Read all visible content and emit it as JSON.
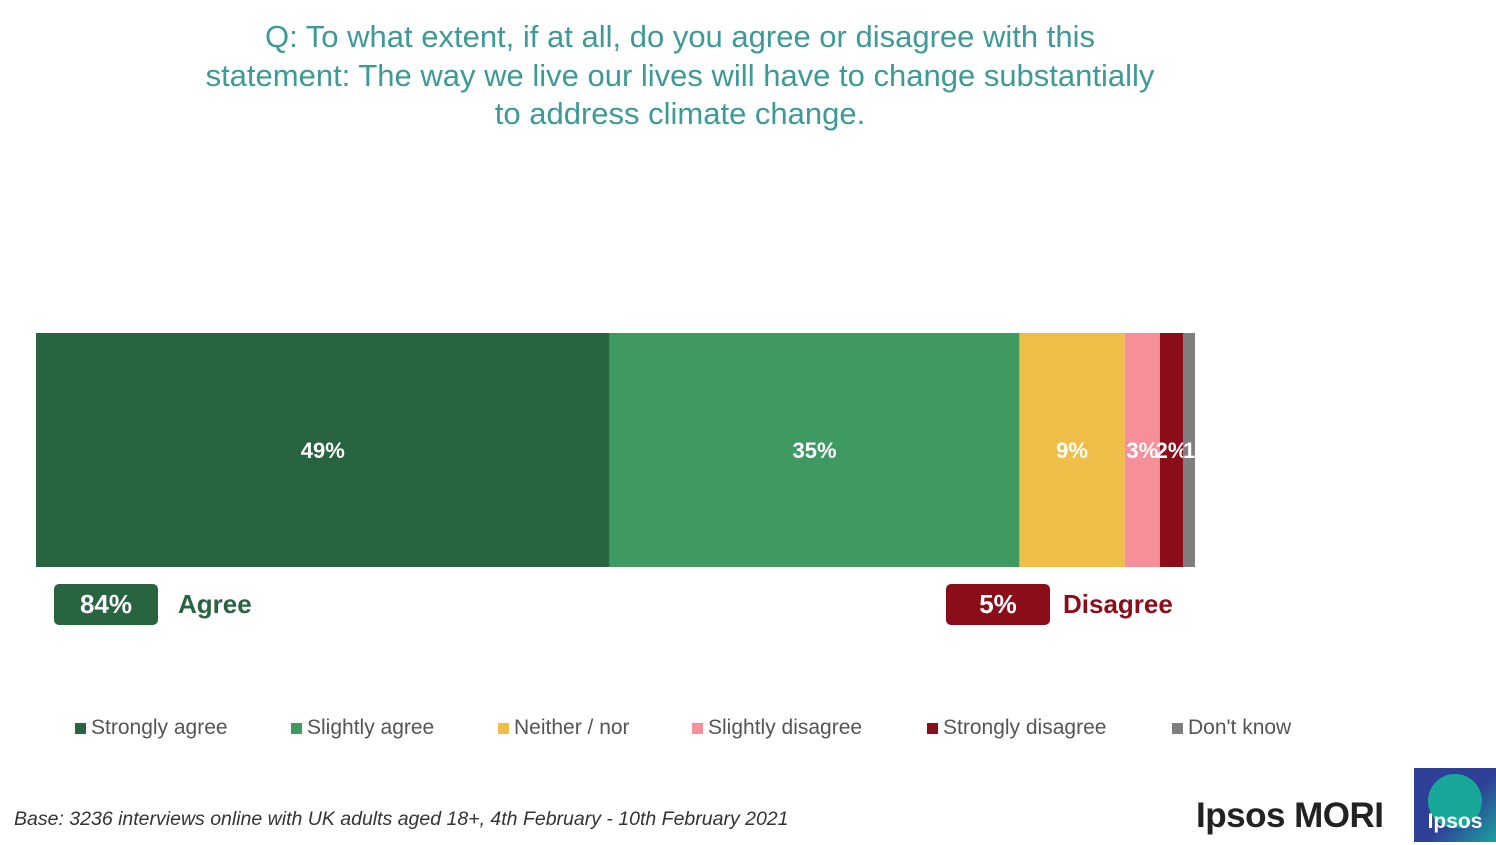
{
  "chart_data": {
    "type": "bar",
    "orientation": "horizontal-stacked",
    "title": "Q: To what extent, if at all, do you agree or disagree with this statement: The way we live our lives will have to change substantially to address climate change.",
    "title_lines": [
      "Q: To what extent, if at all, do you agree or disagree with this",
      "statement: The way we live our lives will have to change substantially",
      "to address climate change."
    ],
    "series": [
      {
        "name": "Strongly agree",
        "value": 49,
        "label": "49%",
        "color": "#27643f"
      },
      {
        "name": "Slightly agree",
        "value": 35,
        "label": "35%",
        "color": "#3e9963"
      },
      {
        "name": "Neither / nor",
        "value": 9,
        "label": "9%",
        "color": "#efbe48"
      },
      {
        "name": "Slightly disagree",
        "value": 3,
        "label": "3%",
        "color": "#f68f99"
      },
      {
        "name": "Strongly disagree",
        "value": 2,
        "label": "2%",
        "color": "#8c0d1a"
      },
      {
        "name": "Don't know",
        "value": 1,
        "label": "1",
        "color": "#7f7f7f"
      }
    ],
    "xlim": [
      0,
      100
    ],
    "legend_position": "bottom",
    "grid": false
  },
  "summary": {
    "agree": {
      "value": "84%",
      "label": "Agree",
      "color": "#27643f"
    },
    "disagree": {
      "value": "5%",
      "label": "Disagree",
      "color": "#8c0d1a"
    }
  },
  "footer": {
    "base": "Base: 3236 interviews online with UK adults aged 18+, 4th February - 10th February 2021",
    "brand": "Ipsos MORI",
    "logo_text": "Ipsos"
  }
}
